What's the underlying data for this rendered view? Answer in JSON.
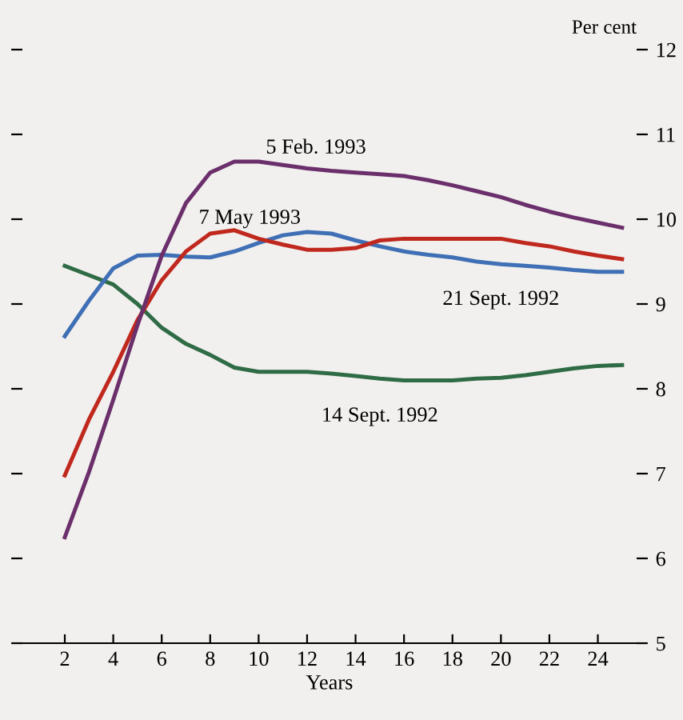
{
  "chart_data": {
    "type": "line",
    "xlabel": "Years",
    "ylabel": "Per cent",
    "xlim": [
      0.25,
      25.6
    ],
    "xticks": [
      2,
      4,
      6,
      8,
      10,
      12,
      14,
      16,
      18,
      20,
      22,
      24
    ],
    "ylim": [
      5,
      12
    ],
    "yticks": [
      5,
      6,
      7,
      8,
      9,
      10,
      11,
      12
    ],
    "grid": false,
    "legend": false,
    "marker": "none",
    "line_style": "solid",
    "x": [
      2,
      3,
      4,
      5,
      6,
      7,
      8,
      9,
      10,
      11,
      12,
      13,
      14,
      15,
      16,
      17,
      18,
      19,
      20,
      21,
      22,
      23,
      24,
      25
    ],
    "series": [
      {
        "name": "14 Sept. 1992",
        "color": "#2f6b45",
        "values": [
          9.45,
          9.34,
          9.23,
          9.0,
          8.72,
          8.53,
          8.4,
          8.25,
          8.2,
          8.2,
          8.2,
          8.18,
          8.15,
          8.12,
          8.1,
          8.1,
          8.1,
          8.12,
          8.13,
          8.16,
          8.2,
          8.24,
          8.27,
          8.28
        ]
      },
      {
        "name": "21 Sept. 1992",
        "color": "#3f6fb5",
        "values": [
          8.62,
          9.04,
          9.42,
          9.57,
          9.58,
          9.56,
          9.55,
          9.62,
          9.72,
          9.81,
          9.85,
          9.83,
          9.75,
          9.68,
          9.62,
          9.58,
          9.55,
          9.5,
          9.47,
          9.45,
          9.43,
          9.4,
          9.38,
          9.38
        ]
      },
      {
        "name": "7 May 1993",
        "color": "#c0281e",
        "values": [
          6.98,
          7.64,
          8.2,
          8.81,
          9.28,
          9.62,
          9.83,
          9.87,
          9.77,
          9.7,
          9.64,
          9.64,
          9.66,
          9.75,
          9.77,
          9.77,
          9.77,
          9.77,
          9.77,
          9.72,
          9.68,
          9.62,
          9.57,
          9.53
        ]
      },
      {
        "name": "5 Feb. 1993",
        "color": "#6b2f6b",
        "values": [
          6.25,
          7.02,
          7.87,
          8.75,
          9.57,
          10.19,
          10.55,
          10.68,
          10.68,
          10.64,
          10.6,
          10.57,
          10.55,
          10.53,
          10.51,
          10.46,
          10.4,
          10.33,
          10.26,
          10.17,
          10.09,
          10.02,
          9.96,
          9.9
        ]
      }
    ]
  }
}
